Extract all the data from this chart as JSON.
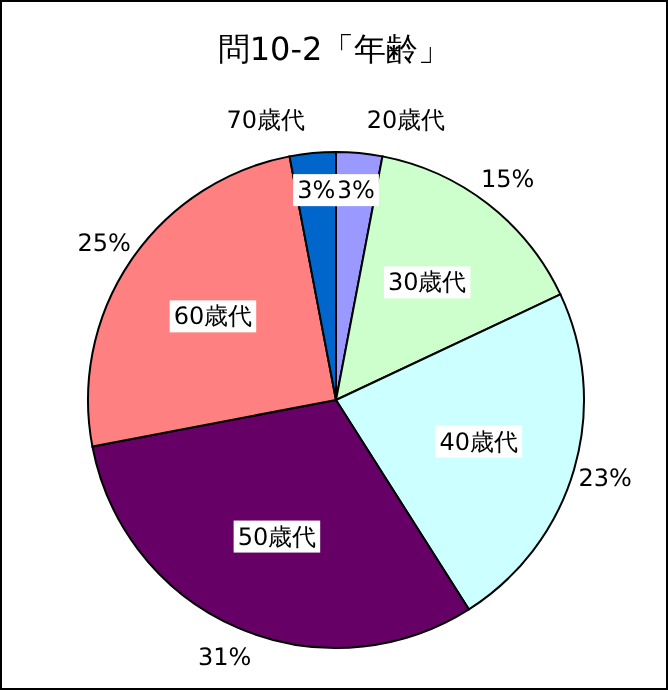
{
  "chart_data": {
    "type": "pie",
    "title": "問10-2「年齢」",
    "categories": [
      "20歳代",
      "30歳代",
      "40歳代",
      "50歳代",
      "60歳代",
      "70歳代"
    ],
    "values": [
      3,
      15,
      23,
      31,
      25,
      3
    ],
    "colors": [
      "#9999ff",
      "#ccffcc",
      "#ccffff",
      "#660066",
      "#ff8080",
      "#0066cc"
    ],
    "value_labels": [
      "3%",
      "15%",
      "23%",
      "31%",
      "25%",
      "3%"
    ]
  }
}
